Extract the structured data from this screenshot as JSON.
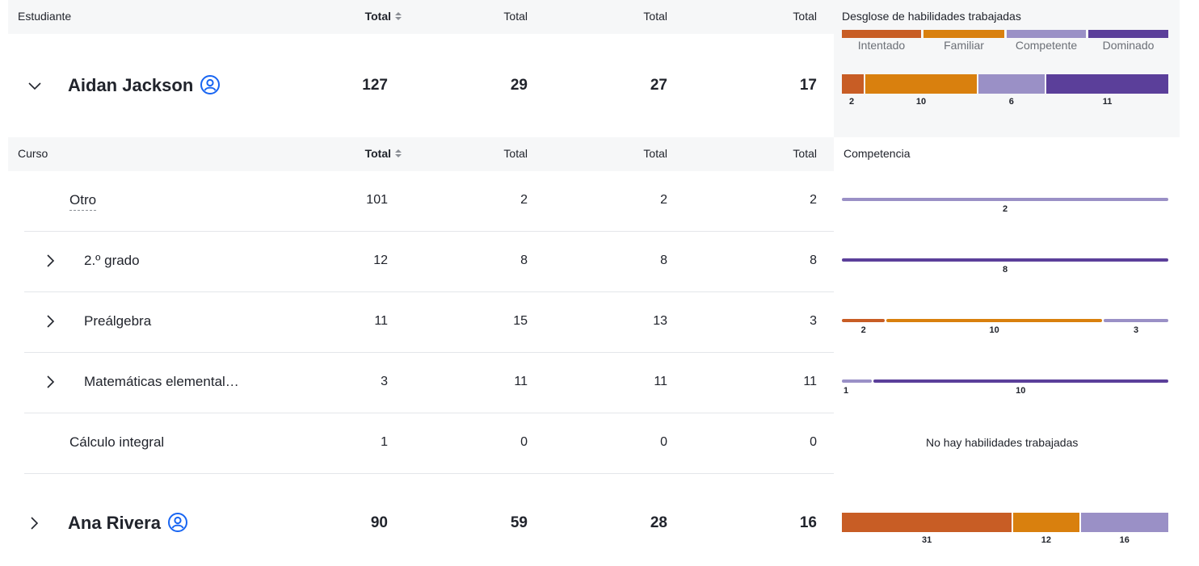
{
  "colors": {
    "intentado": "#c85d25",
    "familiar": "#d9800e",
    "competente": "#9a90c6",
    "dominado": "#5b3f9a",
    "accent": "#1865f2"
  },
  "student_header": {
    "col_name": "Estudiante",
    "col_total_1": "Total",
    "col_total_2": "Total",
    "col_total_3": "Total",
    "col_total_4": "Total",
    "breakdown_title": "Desglose de habilidades trabajadas"
  },
  "legend": {
    "intentado": "Intentado",
    "familiar": "Familiar",
    "competente": "Competente",
    "dominado": "Dominado"
  },
  "students": [
    {
      "name": "Aidan Jackson",
      "expanded": true,
      "icons": [
        "chevron-down-icon",
        "user-circle-icon"
      ],
      "t1": "127",
      "t2": "29",
      "t3": "27",
      "t4": "17",
      "bar": [
        {
          "level": "intentado",
          "value": 2,
          "label": "2"
        },
        {
          "level": "familiar",
          "value": 10,
          "label": "10"
        },
        {
          "level": "competente",
          "value": 6,
          "label": "6"
        },
        {
          "level": "dominado",
          "value": 11,
          "label": "11"
        }
      ]
    },
    {
      "name": "Ana Rivera",
      "expanded": false,
      "icons": [
        "chevron-right-icon",
        "user-circle-icon"
      ],
      "t1": "90",
      "t2": "59",
      "t3": "28",
      "t4": "16",
      "bar": [
        {
          "level": "intentado",
          "value": 31,
          "label": "31"
        },
        {
          "level": "familiar",
          "value": 12,
          "label": "12"
        },
        {
          "level": "competente",
          "value": 16,
          "label": "16"
        }
      ]
    }
  ],
  "course_header": {
    "col_name": "Curso",
    "col_total_1": "Total",
    "col_total_2": "Total",
    "col_total_3": "Total",
    "col_total_4": "Total",
    "competency": "Competencia"
  },
  "courses": [
    {
      "name": "Otro",
      "has_chevron": false,
      "t1": "101",
      "t2": "2",
      "t3": "2",
      "t4": "2",
      "bar": [
        {
          "level": "competente",
          "value": 2,
          "label": "2"
        }
      ]
    },
    {
      "name": "2.º grado",
      "has_chevron": true,
      "t1": "12",
      "t2": "8",
      "t3": "8",
      "t4": "8",
      "bar": [
        {
          "level": "dominado",
          "value": 8,
          "label": "8"
        }
      ]
    },
    {
      "name": "Preálgebra",
      "has_chevron": true,
      "t1": "11",
      "t2": "15",
      "t3": "13",
      "t4": "3",
      "bar": [
        {
          "level": "intentado",
          "value": 2,
          "label": "2"
        },
        {
          "level": "familiar",
          "value": 10,
          "label": "10"
        },
        {
          "level": "competente",
          "value": 3,
          "label": "3"
        }
      ]
    },
    {
      "name": "Matemáticas elemental…",
      "has_chevron": true,
      "t1": "3",
      "t2": "11",
      "t3": "11",
      "t4": "11",
      "bar": [
        {
          "level": "competente",
          "value": 1,
          "label": "1"
        },
        {
          "level": "dominado",
          "value": 10,
          "label": "10"
        }
      ]
    },
    {
      "name": "Cálculo integral",
      "has_chevron": false,
      "t1": "1",
      "t2": "0",
      "t3": "0",
      "t4": "0",
      "bar": [],
      "empty_text": "No hay habilidades trabajadas"
    }
  ]
}
